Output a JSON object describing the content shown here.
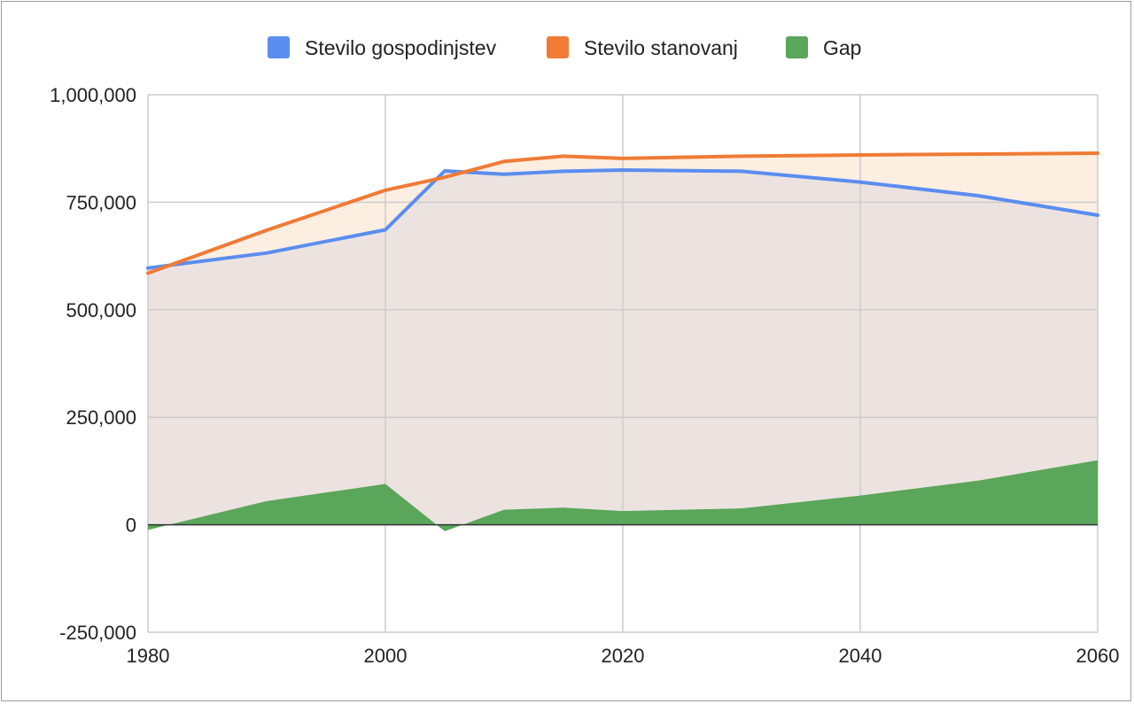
{
  "chart_data": {
    "type": "line",
    "title": "",
    "xlabel": "",
    "ylabel": "",
    "xlim": [
      1980,
      2060
    ],
    "ylim": [
      -250000,
      1000000
    ],
    "x_ticks": [
      "1980",
      "2000",
      "2020",
      "2040",
      "2060"
    ],
    "y_ticks": [
      "1,000,000",
      "750,000",
      "500,000",
      "250,000",
      "0",
      "-250,000"
    ],
    "x_tick_values": [
      1980,
      2000,
      2020,
      2040,
      2060
    ],
    "y_tick_values": [
      1000000,
      750000,
      500000,
      250000,
      0,
      -250000
    ],
    "grid": true,
    "legend_position": "top",
    "series": [
      {
        "name": "Stevilo gospodinjstev",
        "type": "line",
        "color": "#5b8def",
        "x": [
          1980,
          1990,
          2000,
          2005,
          2010,
          2015,
          2020,
          2030,
          2040,
          2050,
          2060
        ],
        "values": [
          597000,
          632000,
          686000,
          823000,
          815000,
          822000,
          825000,
          822000,
          797000,
          765000,
          720000
        ]
      },
      {
        "name": "Stevilo stanovanj",
        "type": "line",
        "color": "#ef7b35",
        "x": [
          1980,
          1990,
          2000,
          2005,
          2010,
          2015,
          2020,
          2030,
          2040,
          2050,
          2060
        ],
        "values": [
          585000,
          685000,
          778000,
          808000,
          845000,
          857000,
          852000,
          857000,
          860000,
          862000,
          864000
        ]
      },
      {
        "name": "Gap",
        "type": "area",
        "color": "#5aa65a",
        "x": [
          1980,
          1990,
          2000,
          2005,
          2010,
          2015,
          2020,
          2030,
          2040,
          2050,
          2060
        ],
        "values": [
          -12000,
          55000,
          95000,
          -15000,
          35000,
          40000,
          32000,
          38000,
          68000,
          103000,
          150000
        ]
      }
    ]
  }
}
